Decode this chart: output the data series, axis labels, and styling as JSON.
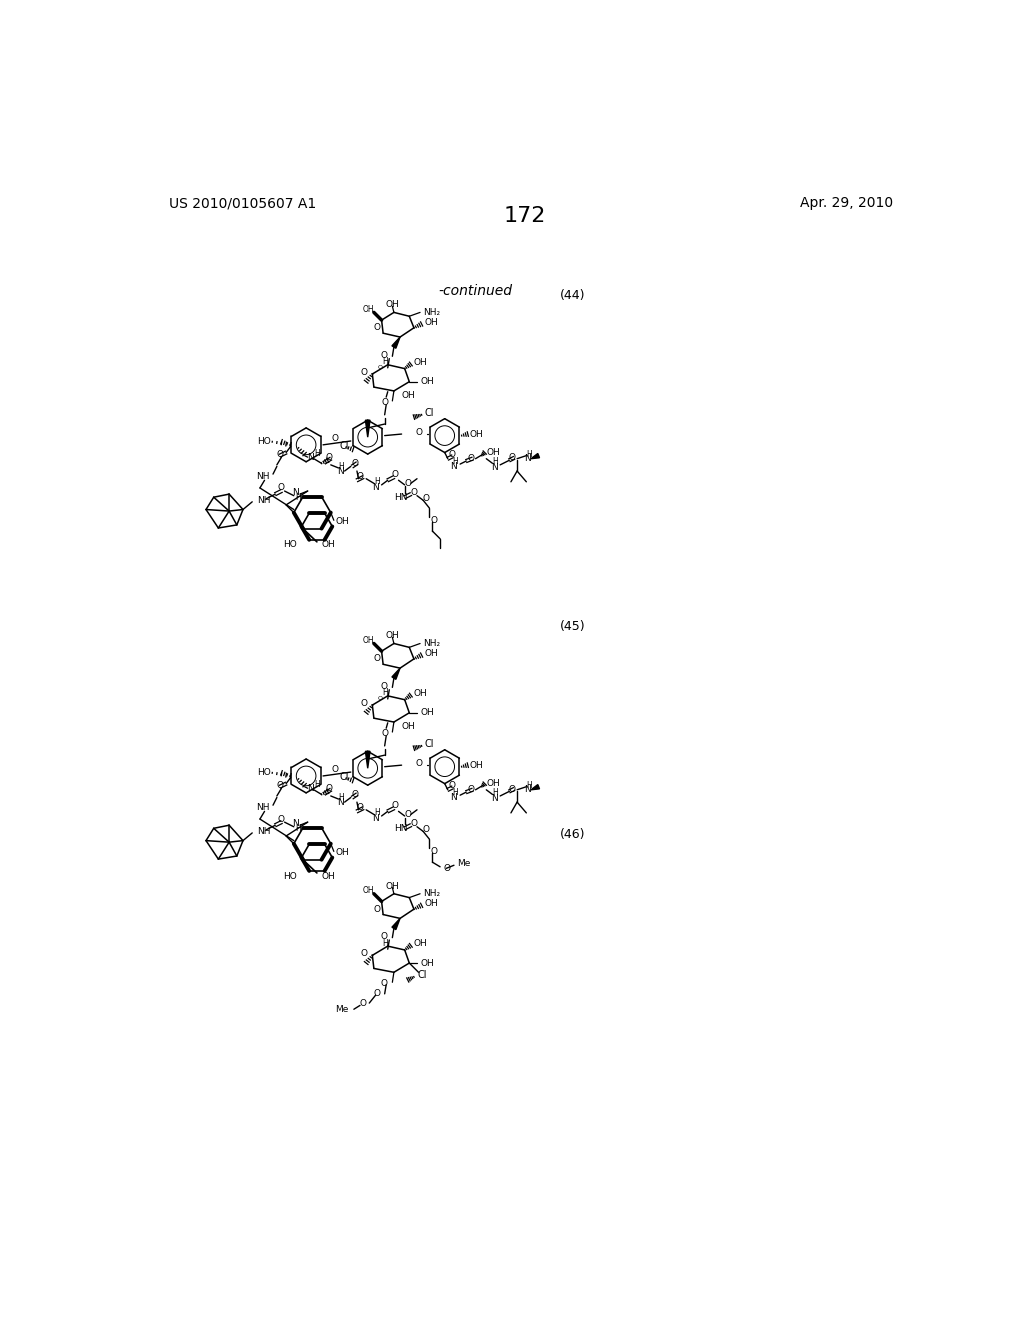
{
  "page_number": "172",
  "patent_number": "US 2010/0105607 A1",
  "date": "Apr. 29, 2010",
  "continued_label": "-continued",
  "compound_44_label": "(44)",
  "compound_45_label": "(45)",
  "compound_46_label": "(46)",
  "background_color": "#ffffff",
  "text_color": "#000000",
  "line_color": "#1a1a1a",
  "font_size_page_num": 16,
  "font_size_patent": 10,
  "font_size_date": 10,
  "font_size_continued": 10,
  "font_size_compound": 9,
  "font_size_label": 6.5,
  "font_size_label_sm": 5.5
}
